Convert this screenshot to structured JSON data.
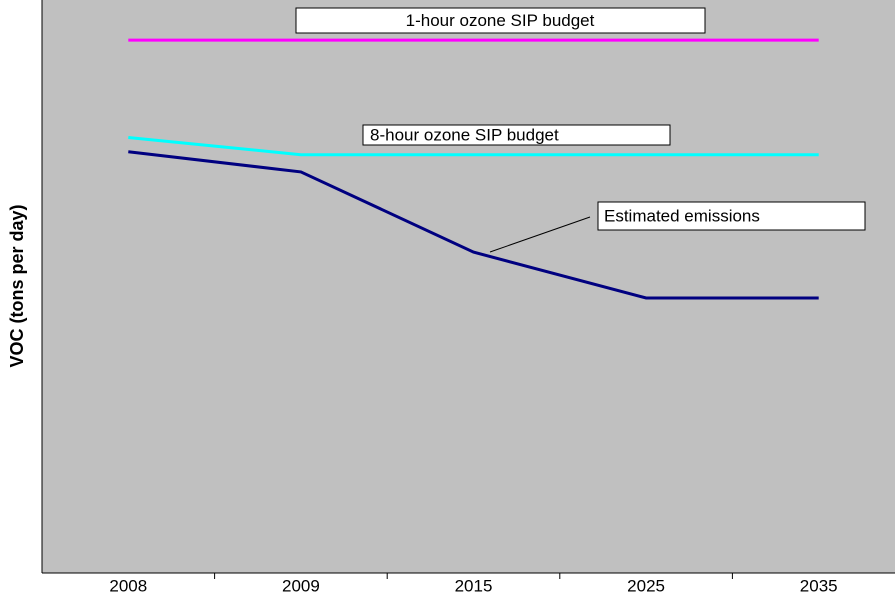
{
  "chart_data": {
    "type": "line",
    "y_label": "VOC (tons per day)",
    "categories": [
      "2008",
      "2009",
      "2015",
      "2025",
      "2035"
    ],
    "ylim": [
      0,
      100
    ],
    "series": [
      {
        "name": "1-hour ozone SIP budget",
        "color": "#ff00ff",
        "values": [
          93,
          93,
          93,
          93,
          93
        ]
      },
      {
        "name": "8-hour ozone SIP budget",
        "color": "#00ffff",
        "values": [
          76,
          73,
          73,
          73,
          73
        ]
      },
      {
        "name": "Estimated emissions",
        "color": "#000080",
        "values": [
          73.5,
          70,
          56,
          48,
          48
        ]
      }
    ]
  }
}
